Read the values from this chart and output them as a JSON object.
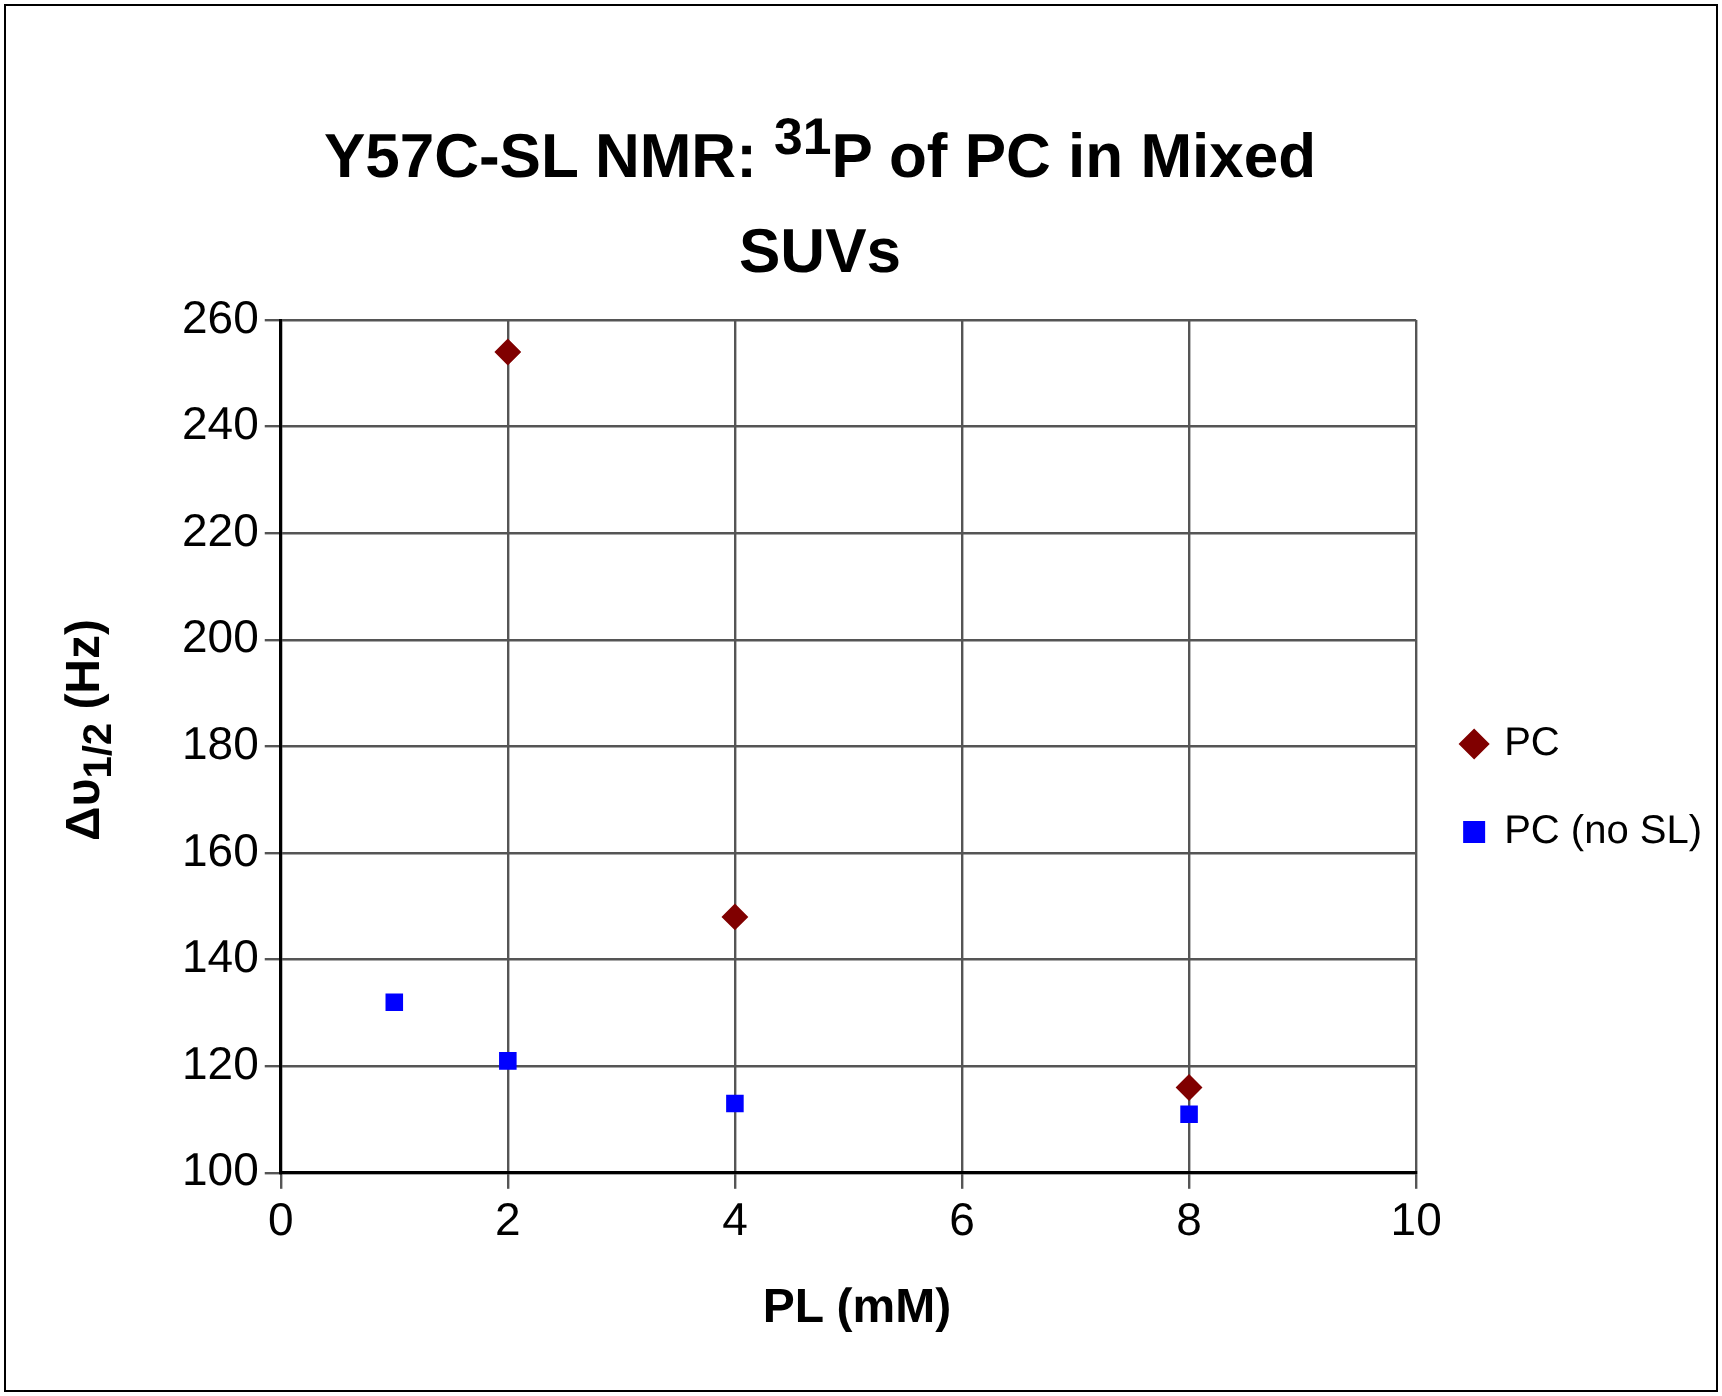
{
  "chart_data": {
    "type": "scatter",
    "title": "Y57C-SL NMR: $^{31}$P of PC in Mixed SUVs",
    "xlabel": "PL (mM)",
    "ylabel": "Δυ$_{1/2}$ (Hz)",
    "series": [
      {
        "name": "PC",
        "color": "#800000",
        "marker": "diamond",
        "x": [
          2,
          4,
          8
        ],
        "values": [
          254,
          148,
          116
        ]
      },
      {
        "name": "PC (no SL)",
        "color": "#0000ff",
        "marker": "square",
        "x": [
          1,
          2,
          4,
          8
        ],
        "values": [
          132,
          121,
          113,
          111
        ]
      }
    ],
    "xlim": [
      0,
      10
    ],
    "xticks": [
      0,
      2,
      4,
      6,
      8,
      10
    ],
    "ylim": [
      100,
      260
    ],
    "yticks": [
      100,
      120,
      140,
      160,
      180,
      200,
      220,
      240,
      260
    ],
    "grid": true,
    "legend": "right"
  }
}
